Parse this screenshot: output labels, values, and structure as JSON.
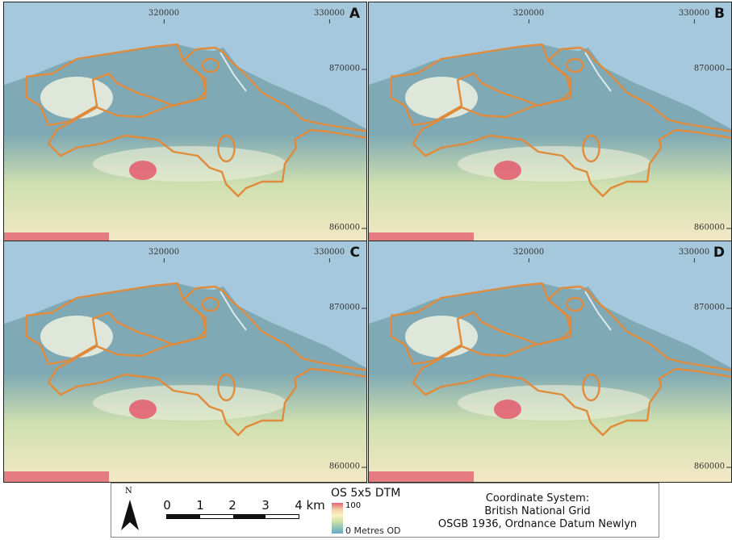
{
  "panels": [
    {
      "label": "A",
      "x_ticks": [
        "320000",
        "330000"
      ],
      "y_ticks": [
        "870000",
        "860000"
      ]
    },
    {
      "label": "B",
      "x_ticks": [
        "320000",
        "330000"
      ],
      "y_ticks": [
        "870000",
        "860000"
      ]
    },
    {
      "label": "C",
      "x_ticks": [
        "320000",
        "330000"
      ],
      "y_ticks": [
        "870000",
        "860000"
      ]
    },
    {
      "label": "D",
      "x_ticks": [
        "320000",
        "330000"
      ],
      "y_ticks": [
        "870000",
        "860000"
      ]
    }
  ],
  "legend": {
    "north_label": "N",
    "scale_labels": [
      "0",
      "1",
      "2",
      "3",
      "4 km"
    ],
    "dtm_title": "OS 5x5 DTM",
    "dtm_high": "100",
    "dtm_low": "0 Metres OD",
    "coordinate_system": {
      "line1": "Coordinate System:",
      "line2": "British National Grid",
      "line3": "OSGB 1936, Ordnance Datum Newlyn"
    }
  },
  "colors": {
    "sea": "#a6c8dc",
    "lowland": "#7fa9b4",
    "upland": "#cfe0b0",
    "high_ground": "#e26272",
    "outline": "#e08a3c"
  }
}
